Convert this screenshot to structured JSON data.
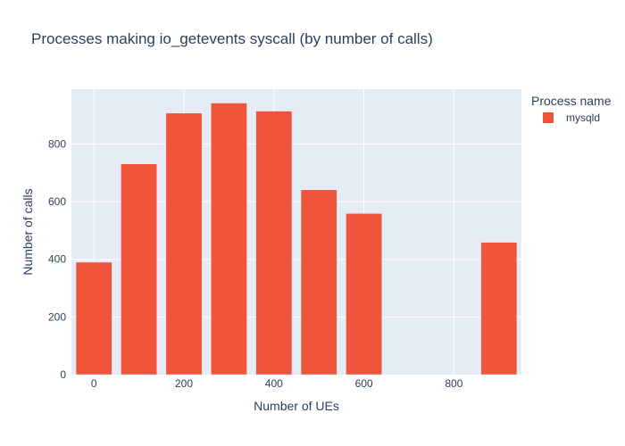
{
  "chart_data": {
    "type": "bar",
    "title": "Processes making io_getevents syscall (by number of calls)",
    "xlabel": "Number of UEs",
    "ylabel": "Number of calls",
    "x": [
      0,
      100,
      200,
      300,
      400,
      500,
      600,
      900
    ],
    "series": [
      {
        "name": "mysqld",
        "color": "#ef553b",
        "values": [
          390,
          731,
          907,
          942,
          914,
          641,
          559,
          459
        ]
      }
    ],
    "xlim": [
      -50,
      950
    ],
    "ylim": [
      0,
      990
    ],
    "xticks": [
      0,
      200,
      400,
      600,
      800
    ],
    "yticks": [
      0,
      200,
      400,
      600,
      800
    ],
    "legend": {
      "title": "Process name",
      "position": "right"
    },
    "background_color": "#e5ecf6",
    "grid": true
  }
}
